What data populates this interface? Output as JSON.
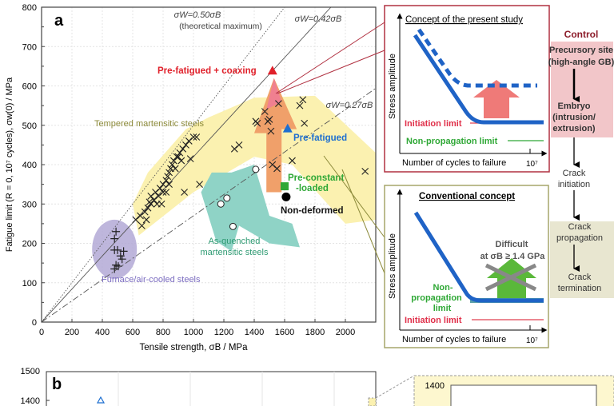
{
  "panel_a": {
    "label": "a",
    "chart_data": {
      "type": "scatter",
      "xlabel": "Tensile strength, σB / MPa",
      "ylabel": "Fatigue limit (R = 0, 10⁷ cycles), σw(0) / MPa",
      "xlim": [
        0,
        2200
      ],
      "ylim": [
        0,
        800
      ],
      "x_ticks": [
        0,
        200,
        400,
        600,
        800,
        1000,
        1200,
        1400,
        1600,
        1800,
        2000
      ],
      "y_ticks": [
        0,
        100,
        200,
        300,
        400,
        500,
        600,
        700,
        800
      ],
      "grid": true,
      "reference_lines": [
        {
          "label": "σW=0.50σB",
          "sublabel": "(theoretical maximum)",
          "slope": 0.5,
          "style": "dotted"
        },
        {
          "label": "σW=0.42σB",
          "slope": 0.42,
          "style": "solid"
        },
        {
          "label": "σW=0.27σB",
          "slope": 0.27,
          "style": "dash-dot"
        }
      ],
      "series": [
        {
          "name": "Tempered martensitic steels",
          "marker": "x",
          "color": "#222222",
          "points": [
            [
              620,
              260
            ],
            [
              650,
              270
            ],
            [
              660,
              245
            ],
            [
              680,
              280
            ],
            [
              690,
              260
            ],
            [
              700,
              290
            ],
            [
              710,
              305
            ],
            [
              720,
              300
            ],
            [
              720,
              320
            ],
            [
              740,
              310
            ],
            [
              750,
              330
            ],
            [
              760,
              300
            ],
            [
              770,
              320
            ],
            [
              780,
              340
            ],
            [
              790,
              300
            ],
            [
              800,
              350
            ],
            [
              800,
              330
            ],
            [
              820,
              360
            ],
            [
              830,
              370
            ],
            [
              840,
              380
            ],
            [
              850,
              390
            ],
            [
              860,
              400
            ],
            [
              870,
              410
            ],
            [
              880,
              390
            ],
            [
              890,
              420
            ],
            [
              900,
              420
            ],
            [
              910,
              430
            ],
            [
              920,
              410
            ],
            [
              930,
              440
            ],
            [
              950,
              450
            ],
            [
              970,
              460
            ],
            [
              1000,
              470
            ],
            [
              1020,
              470
            ],
            [
              980,
              415
            ],
            [
              820,
              330
            ],
            [
              840,
              350
            ],
            [
              1040,
              350
            ],
            [
              940,
              330
            ],
            [
              1270,
              440
            ],
            [
              1300,
              450
            ],
            [
              1410,
              510
            ],
            [
              1420,
              505
            ],
            [
              1470,
              535
            ],
            [
              1490,
              510
            ],
            [
              1500,
              515
            ],
            [
              1510,
              485
            ],
            [
              1520,
              400
            ],
            [
              1550,
              390
            ],
            [
              1560,
              555
            ],
            [
              1650,
              410
            ],
            [
              1700,
              550
            ],
            [
              1720,
              565
            ],
            [
              1730,
              505
            ],
            [
              2130,
              383
            ]
          ]
        },
        {
          "name": "As-quenched martensitic steels",
          "marker": "circle-open",
          "color": "#222222",
          "points": [
            [
              1180,
              300
            ],
            [
              1220,
              315
            ],
            [
              1260,
              243
            ],
            [
              1410,
              388
            ]
          ]
        },
        {
          "name": "Furnace/air-cooled steels",
          "marker": "plus",
          "color": "#222222",
          "points": [
            [
              490,
              230
            ],
            [
              480,
              212
            ],
            [
              480,
              183
            ],
            [
              500,
              183
            ],
            [
              540,
              180
            ],
            [
              520,
              168
            ],
            [
              530,
              160
            ],
            [
              490,
              145
            ],
            [
              480,
              135
            ],
            [
              505,
              142
            ]
          ]
        },
        {
          "name": "Pre-fatigued + coaxing",
          "marker": "triangle",
          "color": "#e0202a",
          "points": [
            [
              1520,
              637
            ]
          ]
        },
        {
          "name": "Pre-fatigued",
          "marker": "triangle",
          "color": "#1e6fd0",
          "points": [
            [
              1620,
              490
            ]
          ]
        },
        {
          "name": "Pre-constant -loaded",
          "marker": "square",
          "color": "#2fa836",
          "points": [
            [
              1600,
              345
            ]
          ]
        },
        {
          "name": "Non-deformed",
          "marker": "circle",
          "color": "#000000",
          "points": [
            [
              1610,
              318
            ]
          ]
        }
      ],
      "annotations": {
        "tempered": "Tempered martensitic steels",
        "as_quenched_1": "As-quenched",
        "as_quenched_2": "martensitic steels",
        "furnace": "Furnace/air-cooled steels",
        "coaxing": "Pre-fatigued + coaxing",
        "prefatigued": "Pre-fatigued",
        "preconstant_1": "Pre-constant",
        "preconstant_2": "-loaded",
        "nondeformed": "Non-deformed"
      },
      "colors": {
        "tempered_region": "#fbf1b0",
        "as_quenched_region": "#8fd3c6",
        "furnace_region": "#b3a9d6",
        "arrow": "#f0a06a",
        "tempered_text": "#8c8a3a",
        "as_quenched_text": "#2e9a72",
        "furnace_text": "#7b6cc0"
      }
    }
  },
  "present_concept": {
    "title": "Concept of the present study",
    "ylabel": "Stress amplitude",
    "xlabel": "Number of cycles to failure",
    "x_tick": "10⁷",
    "initiation": "Initiation limit",
    "nonprop": "Non-propagation limit"
  },
  "conventional_concept": {
    "title": "Conventional concept",
    "ylabel": "Stress amplitude",
    "xlabel": "Number of cycles to failure",
    "x_tick": "10⁷",
    "nonprop_1": "Non-",
    "nonprop_2": "propagation",
    "nonprop_3": "limit",
    "initiation": "Initiation limit",
    "difficult_1": "Difficult",
    "difficult_2": "at σB ≥ 1.4 GPa"
  },
  "flow": {
    "control": "Control",
    "precursory_1": "Precursory site",
    "precursory_2": "(high-angle GB)",
    "embryo_1": "Embryo",
    "embryo_2": "(intrusion/",
    "embryo_3": "extrusion)",
    "init_1": "Crack",
    "init_2": "initiation",
    "prop_1": "Crack",
    "prop_2": "propagation",
    "term_1": "Crack",
    "term_2": "termination"
  },
  "panel_b": {
    "label": "b",
    "y_ticks": [
      "1500",
      "1400"
    ],
    "inset_y_tick": "1400"
  }
}
